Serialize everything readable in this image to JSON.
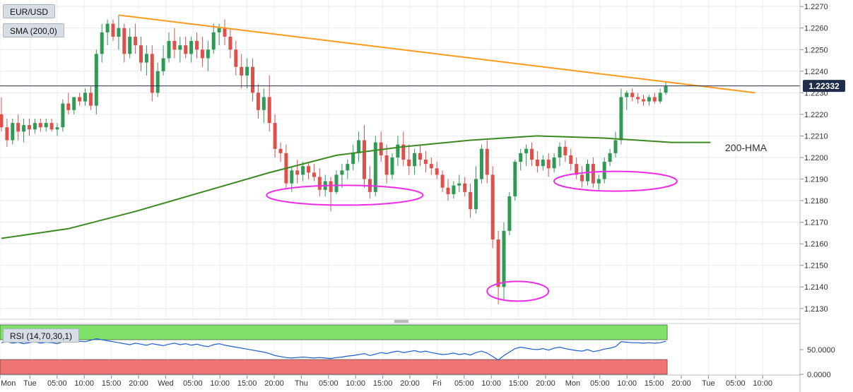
{
  "panel_labels": {
    "symbol": "EUR/USD",
    "indicator": "SMA (200,0)",
    "rsi": "RSI (14,70,30,1)",
    "hma": "200-HMA"
  },
  "price_badge": "1.22332",
  "colors": {
    "bull": "#2e9a53",
    "bear": "#e0504a",
    "trendline": "#ff9a1f",
    "hma": "#3a8a1f",
    "ellipse": "#ee2be8",
    "rsi_line": "#1c5fd0",
    "rsi_overbought": "#7fe06a",
    "rsi_oversold": "#f07474",
    "price_line": "#1f2d4a"
  },
  "chart_data": [
    {
      "type": "candlestick",
      "x_ticks": [
        "Mon",
        "Tue",
        "05:00",
        "10:00",
        "15:00",
        "20:00",
        "Wed",
        "05:00",
        "10:00",
        "15:00",
        "20:00",
        "Thu",
        "05:00",
        "10:00",
        "15:00",
        "20:00",
        "Fri",
        "05:00",
        "10:00",
        "15:00",
        "20:00",
        "Mon",
        "05:00",
        "10:00",
        "15:00",
        "20:00",
        "Tue",
        "05:00",
        "10:00"
      ],
      "y_ticks": [
        "1.2130",
        "1.2140",
        "1.2150",
        "1.2160",
        "1.2170",
        "1.2180",
        "1.2190",
        "1.2200",
        "1.2210",
        "1.2220",
        "1.2230",
        "1.2240",
        "1.2250",
        "1.2260",
        "1.2270"
      ],
      "ylim": [
        1.2126,
        1.2273
      ],
      "last_price": 1.22332,
      "candles": [
        [
          1.222,
          1.2228,
          1.2212,
          1.2214
        ],
        [
          1.2214,
          1.2218,
          1.2205,
          1.2208
        ],
        [
          1.2208,
          1.2218,
          1.2206,
          1.2216
        ],
        [
          1.2216,
          1.222,
          1.2208,
          1.2212
        ],
        [
          1.2212,
          1.2218,
          1.2207,
          1.2215
        ],
        [
          1.2215,
          1.2218,
          1.221,
          1.2213
        ],
        [
          1.2213,
          1.2218,
          1.2211,
          1.2216
        ],
        [
          1.2216,
          1.2218,
          1.2212,
          1.2214
        ],
        [
          1.2214,
          1.2218,
          1.2212,
          1.2216
        ],
        [
          1.2216,
          1.2218,
          1.2212,
          1.2213
        ],
        [
          1.2213,
          1.2216,
          1.221,
          1.2214
        ],
        [
          1.2214,
          1.2227,
          1.2212,
          1.2225
        ],
        [
          1.2225,
          1.223,
          1.222,
          1.2222
        ],
        [
          1.2222,
          1.2228,
          1.222,
          1.2228
        ],
        [
          1.2228,
          1.223,
          1.2224,
          1.2226
        ],
        [
          1.2226,
          1.2232,
          1.2224,
          1.223
        ],
        [
          1.223,
          1.2233,
          1.2222,
          1.2224
        ],
        [
          1.2224,
          1.225,
          1.222,
          1.2248
        ],
        [
          1.2248,
          1.2262,
          1.2244,
          1.2258
        ],
        [
          1.2258,
          1.2264,
          1.2252,
          1.2262
        ],
        [
          1.2262,
          1.2264,
          1.2254,
          1.2256
        ],
        [
          1.2256,
          1.2266,
          1.225,
          1.226
        ],
        [
          1.226,
          1.2262,
          1.2244,
          1.2248
        ],
        [
          1.2248,
          1.226,
          1.2246,
          1.2256
        ],
        [
          1.2256,
          1.2262,
          1.2248,
          1.2252
        ],
        [
          1.2252,
          1.2256,
          1.224,
          1.2244
        ],
        [
          1.2244,
          1.2252,
          1.2238,
          1.2248
        ],
        [
          1.2248,
          1.2252,
          1.2226,
          1.223
        ],
        [
          1.223,
          1.2244,
          1.2228,
          1.224
        ],
        [
          1.224,
          1.2252,
          1.2238,
          1.2246
        ],
        [
          1.2246,
          1.2258,
          1.2244,
          1.2254
        ],
        [
          1.2254,
          1.226,
          1.2246,
          1.225
        ],
        [
          1.225,
          1.2256,
          1.2244,
          1.2252
        ],
        [
          1.2252,
          1.2256,
          1.2246,
          1.2248
        ],
        [
          1.2248,
          1.2256,
          1.2244,
          1.2254
        ],
        [
          1.2254,
          1.2258,
          1.2246,
          1.225
        ],
        [
          1.225,
          1.2256,
          1.2242,
          1.2246
        ],
        [
          1.2246,
          1.2254,
          1.224,
          1.225
        ],
        [
          1.225,
          1.2262,
          1.2248,
          1.2258
        ],
        [
          1.2258,
          1.2262,
          1.2252,
          1.226
        ],
        [
          1.226,
          1.2264,
          1.2252,
          1.2256
        ],
        [
          1.2256,
          1.226,
          1.2246,
          1.225
        ],
        [
          1.225,
          1.2254,
          1.2238,
          1.2242
        ],
        [
          1.2242,
          1.2248,
          1.2232,
          1.2238
        ],
        [
          1.2238,
          1.2246,
          1.2232,
          1.2242
        ],
        [
          1.2242,
          1.2246,
          1.2226,
          1.223
        ],
        [
          1.223,
          1.2234,
          1.2218,
          1.2222
        ],
        [
          1.2222,
          1.2232,
          1.2216,
          1.2228
        ],
        [
          1.2228,
          1.2238,
          1.2212,
          1.2216
        ],
        [
          1.2216,
          1.222,
          1.22,
          1.2204
        ],
        [
          1.2204,
          1.2207,
          1.2198,
          1.2202
        ],
        [
          1.2202,
          1.2206,
          1.2186,
          1.2188
        ],
        [
          1.2188,
          1.2196,
          1.2184,
          1.2194
        ],
        [
          1.2194,
          1.2199,
          1.2188,
          1.2192
        ],
        [
          1.2192,
          1.2198,
          1.2189,
          1.2196
        ],
        [
          1.2196,
          1.2198,
          1.219,
          1.2193
        ],
        [
          1.2193,
          1.2197,
          1.2189,
          1.2191
        ],
        [
          1.2191,
          1.2195,
          1.2182,
          1.2185
        ],
        [
          1.2185,
          1.2192,
          1.2182,
          1.2189
        ],
        [
          1.2189,
          1.2191,
          1.2175,
          1.2184
        ],
        [
          1.2184,
          1.2194,
          1.2183,
          1.2192
        ],
        [
          1.2192,
          1.2197,
          1.2186,
          1.2194
        ],
        [
          1.2194,
          1.2199,
          1.219,
          1.2197
        ],
        [
          1.2197,
          1.2206,
          1.2194,
          1.2202
        ],
        [
          1.2202,
          1.2212,
          1.2198,
          1.2208
        ],
        [
          1.2208,
          1.2215,
          1.2186,
          1.219
        ],
        [
          1.219,
          1.2196,
          1.2181,
          1.2184
        ],
        [
          1.2184,
          1.221,
          1.2182,
          1.2207
        ],
        [
          1.2207,
          1.2212,
          1.2198,
          1.2201
        ],
        [
          1.2201,
          1.2206,
          1.2188,
          1.2192
        ],
        [
          1.2192,
          1.2202,
          1.219,
          1.22
        ],
        [
          1.22,
          1.221,
          1.2196,
          1.2206
        ],
        [
          1.2206,
          1.2212,
          1.2196,
          1.2199
        ],
        [
          1.2199,
          1.2206,
          1.2192,
          1.2196
        ],
        [
          1.2196,
          1.2204,
          1.2192,
          1.2202
        ],
        [
          1.2202,
          1.2206,
          1.2196,
          1.2199
        ],
        [
          1.2199,
          1.2203,
          1.2193,
          1.2197
        ],
        [
          1.2197,
          1.22,
          1.2192,
          1.2195
        ],
        [
          1.2195,
          1.2198,
          1.219,
          1.2192
        ],
        [
          1.2192,
          1.2194,
          1.2184,
          1.2186
        ],
        [
          1.2186,
          1.219,
          1.218,
          1.2183
        ],
        [
          1.2183,
          1.2189,
          1.2181,
          1.2187
        ],
        [
          1.2187,
          1.2192,
          1.2184,
          1.2188
        ],
        [
          1.2188,
          1.2191,
          1.2182,
          1.2184
        ],
        [
          1.2184,
          1.2188,
          1.2172,
          1.2176
        ],
        [
          1.2176,
          1.2196,
          1.2174,
          1.219
        ],
        [
          1.219,
          1.2206,
          1.2188,
          1.2204
        ],
        [
          1.2204,
          1.2208,
          1.2188,
          1.2192
        ],
        [
          1.2192,
          1.2196,
          1.2158,
          1.2162
        ],
        [
          1.2162,
          1.2166,
          1.2132,
          1.214
        ],
        [
          1.214,
          1.217,
          1.2134,
          1.2166
        ],
        [
          1.2166,
          1.2184,
          1.2164,
          1.2182
        ],
        [
          1.2182,
          1.2199,
          1.218,
          1.2198
        ],
        [
          1.2198,
          1.2204,
          1.2194,
          1.2202
        ],
        [
          1.2202,
          1.2206,
          1.2196,
          1.2204
        ],
        [
          1.2204,
          1.2207,
          1.2196,
          1.2199
        ],
        [
          1.2199,
          1.2203,
          1.2193,
          1.2196
        ],
        [
          1.2196,
          1.2201,
          1.2194,
          1.2199
        ],
        [
          1.2199,
          1.2202,
          1.2191,
          1.2195
        ],
        [
          1.2195,
          1.2202,
          1.2193,
          1.22
        ],
        [
          1.22,
          1.2207,
          1.2196,
          1.2205
        ],
        [
          1.2205,
          1.2208,
          1.2198,
          1.2201
        ],
        [
          1.2201,
          1.2204,
          1.2194,
          1.2197
        ],
        [
          1.2197,
          1.22,
          1.219,
          1.2192
        ],
        [
          1.2192,
          1.2196,
          1.2186,
          1.2189
        ],
        [
          1.2189,
          1.2199,
          1.2187,
          1.2197
        ],
        [
          1.2197,
          1.22,
          1.2186,
          1.2188
        ],
        [
          1.2188,
          1.2192,
          1.2185,
          1.219
        ],
        [
          1.219,
          1.22,
          1.2188,
          1.2198
        ],
        [
          1.2198,
          1.2204,
          1.2196,
          1.2202
        ],
        [
          1.2202,
          1.2212,
          1.22,
          1.2208
        ],
        [
          1.2208,
          1.2232,
          1.2206,
          1.2228
        ],
        [
          1.2228,
          1.2231,
          1.2222,
          1.223
        ],
        [
          1.223,
          1.2232,
          1.2226,
          1.2228
        ],
        [
          1.2228,
          1.223,
          1.2225,
          1.2227
        ],
        [
          1.2227,
          1.2229,
          1.2224,
          1.2226
        ],
        [
          1.2226,
          1.2229,
          1.2224,
          1.2228
        ],
        [
          1.2228,
          1.223,
          1.2225,
          1.2226
        ],
        [
          1.2226,
          1.2232,
          1.2225,
          1.223
        ],
        [
          1.223,
          1.2235,
          1.2229,
          1.2233
        ]
      ],
      "sma_200": [
        [
          0,
          1.21625
        ],
        [
          12,
          1.2167
        ],
        [
          24,
          1.2175
        ],
        [
          36,
          1.2184
        ],
        [
          48,
          1.2193
        ],
        [
          60,
          1.2201
        ],
        [
          72,
          1.2205
        ],
        [
          84,
          1.2208
        ],
        [
          96,
          1.221
        ],
        [
          108,
          1.2209
        ],
        [
          120,
          1.2207
        ],
        [
          127,
          1.2207
        ]
      ],
      "trendline": [
        [
          21,
          1.2266
        ],
        [
          135,
          1.223
        ]
      ],
      "ellipses": [
        {
          "center": [
            1.2185,
            1.218
          ],
          "center_index": 61.5,
          "x_span": 27
        },
        {
          "center": [
            1.2138,
            1.2138
          ],
          "center_index": 92.5,
          "x_span": 10
        },
        {
          "center": [
            1.219,
            1.2188
          ],
          "center_index": 110,
          "x_span": 21
        }
      ]
    },
    {
      "type": "line",
      "name": "RSI",
      "y_ticks": [
        "0.0000",
        "50.0000"
      ],
      "ylim": [
        0,
        100
      ],
      "overbought": 70,
      "oversold": 30,
      "values": [
        64,
        66,
        63,
        65,
        62,
        64,
        66,
        63,
        65,
        64,
        62,
        66,
        68,
        65,
        67,
        66,
        69,
        72,
        70,
        68,
        66,
        64,
        62,
        60,
        63,
        61,
        59,
        62,
        60,
        58,
        61,
        63,
        60,
        62,
        59,
        61,
        58,
        56,
        60,
        62,
        59,
        57,
        55,
        53,
        51,
        49,
        47,
        45,
        42,
        38,
        36,
        34,
        33,
        34,
        35,
        34,
        33,
        34,
        33,
        32,
        34,
        35,
        37,
        38,
        40,
        42,
        38,
        41,
        44,
        42,
        45,
        47,
        44,
        46,
        48,
        45,
        47,
        44,
        42,
        40,
        41,
        43,
        40,
        42,
        39,
        44,
        47,
        43,
        36,
        29,
        38,
        45,
        52,
        55,
        53,
        51,
        50,
        52,
        49,
        53,
        55,
        52,
        50,
        48,
        47,
        50,
        46,
        48,
        51,
        53,
        56,
        66,
        65,
        64,
        64,
        63,
        64,
        63,
        64,
        67
      ]
    }
  ]
}
